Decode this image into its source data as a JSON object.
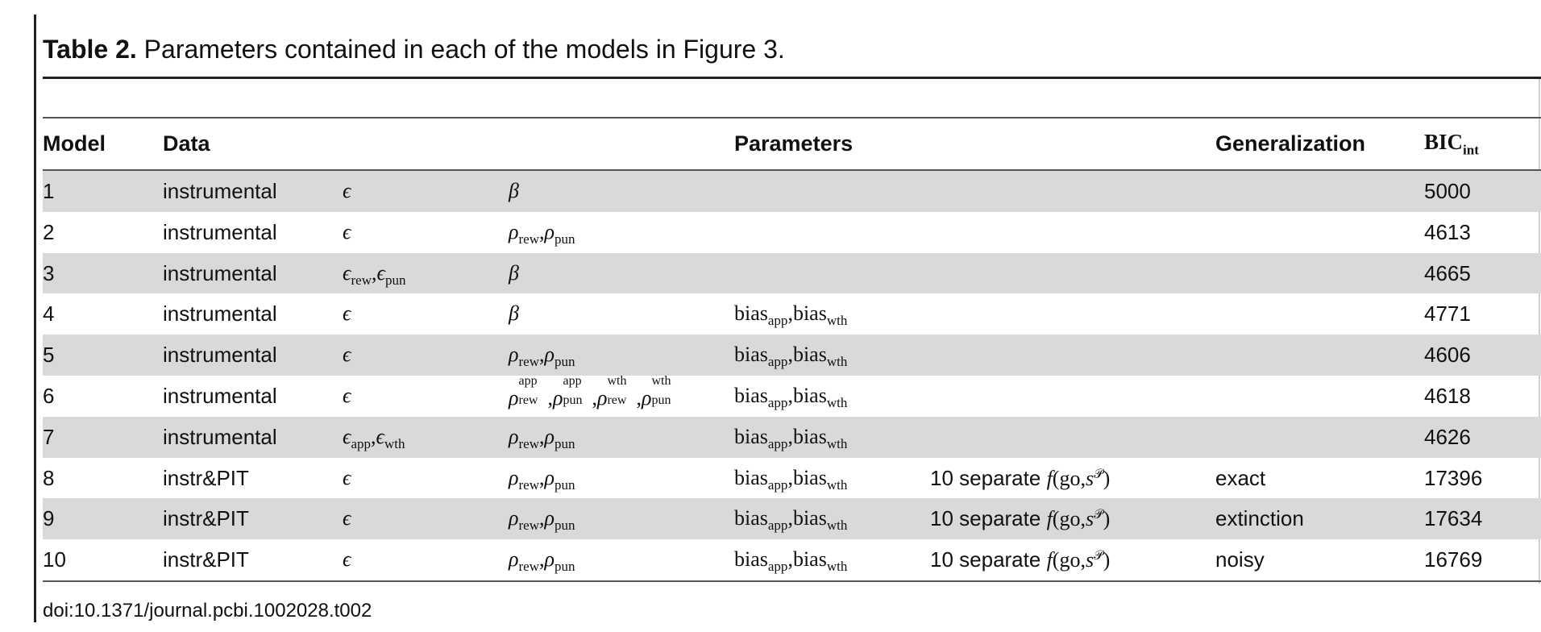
{
  "caption": {
    "label": "Table 2.",
    "text": " Parameters contained in each of the models in Figure 3."
  },
  "header": {
    "model": "Model",
    "data": "Data",
    "parameters": "Parameters",
    "generalization": "Generalization",
    "bic": "BIC",
    "bic_sub": "int"
  },
  "rows": [
    {
      "model": "1",
      "data": "instrumental",
      "bic": "5000",
      "generalization": ""
    },
    {
      "model": "2",
      "data": "instrumental",
      "bic": "4613",
      "generalization": ""
    },
    {
      "model": "3",
      "data": "instrumental",
      "bic": "4665",
      "generalization": ""
    },
    {
      "model": "4",
      "data": "instrumental",
      "bic": "4771",
      "generalization": ""
    },
    {
      "model": "5",
      "data": "instrumental",
      "bic": "4606",
      "generalization": ""
    },
    {
      "model": "6",
      "data": "instrumental",
      "bic": "4618",
      "generalization": ""
    },
    {
      "model": "7",
      "data": "instrumental",
      "bic": "4626",
      "generalization": ""
    },
    {
      "model": "8",
      "data": "instr&PIT",
      "bic": "17396",
      "generalization": "exact"
    },
    {
      "model": "9",
      "data": "instr&PIT",
      "bic": "17634",
      "generalization": "extinction"
    },
    {
      "model": "10",
      "data": "instr&PIT",
      "bic": "16769",
      "generalization": "noisy"
    }
  ],
  "doi": "doi:10.1371/journal.pcbi.1002028.t002"
}
